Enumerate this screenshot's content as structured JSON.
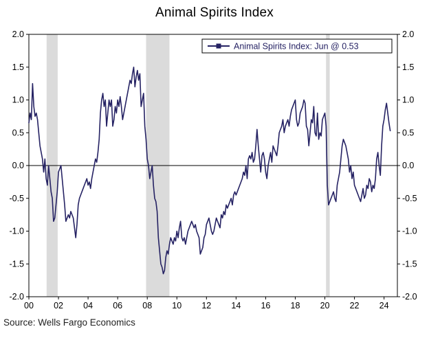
{
  "page": {
    "title": "Animal Spirits Index",
    "source": "Source: Wells Fargo Economics"
  },
  "chart_data": {
    "type": "line",
    "title": "Animal Spirits Index",
    "legend_label": "Animal Spirits Index: Jun @ 0.53",
    "source": "Source: Wells Fargo Economics",
    "x_axis": {
      "range": [
        2000,
        2024.9
      ],
      "tick_years": [
        2000,
        2002,
        2004,
        2006,
        2008,
        2010,
        2012,
        2014,
        2016,
        2018,
        2020,
        2022,
        2024
      ],
      "tick_labels": [
        "00",
        "02",
        "04",
        "06",
        "08",
        "10",
        "12",
        "14",
        "16",
        "18",
        "20",
        "22",
        "24"
      ]
    },
    "y_axis": {
      "range": [
        -2.0,
        2.0
      ],
      "ticks": [
        2.0,
        1.5,
        1.0,
        0.5,
        0.0,
        -0.5,
        -1.0,
        -1.5,
        -2.0
      ],
      "tick_labels": [
        "2.0",
        "1.5",
        "1.0",
        "0.5",
        "0.0",
        "-0.5",
        "-1.0",
        "-1.5",
        "-2.0"
      ]
    },
    "recession_bands": [
      [
        2001.2,
        2001.95
      ],
      [
        2007.92,
        2009.5
      ],
      [
        2020.08,
        2020.33
      ]
    ],
    "colors": {
      "line": "#252263",
      "recession_band": "#DBDBDB",
      "axis": "#000000",
      "legend_border": "#000000"
    },
    "series": [
      {
        "name": "Animal Spirits Index",
        "latest_label": "Jun @ 0.53",
        "frequency": "monthly",
        "x_start_year": 2000,
        "x_step_months": 1,
        "values": [
          0.65,
          0.8,
          0.7,
          1.25,
          0.9,
          0.75,
          0.8,
          0.7,
          0.5,
          0.3,
          0.2,
          0.1,
          -0.1,
          0.1,
          -0.2,
          -0.3,
          0.0,
          -0.2,
          -0.4,
          -0.5,
          -0.85,
          -0.8,
          -0.6,
          -0.4,
          -0.1,
          -0.05,
          0.0,
          -0.2,
          -0.4,
          -0.6,
          -0.85,
          -0.8,
          -0.75,
          -0.8,
          -0.7,
          -0.75,
          -0.8,
          -0.95,
          -1.1,
          -0.9,
          -0.6,
          -0.5,
          -0.45,
          -0.4,
          -0.35,
          -0.3,
          -0.25,
          -0.2,
          -0.3,
          -0.25,
          -0.35,
          -0.2,
          -0.1,
          0.0,
          0.1,
          0.05,
          0.2,
          0.4,
          0.8,
          1.0,
          1.1,
          0.9,
          1.0,
          0.6,
          0.8,
          1.0,
          0.9,
          1.0,
          0.6,
          0.7,
          0.9,
          0.8,
          1.0,
          0.9,
          1.05,
          0.9,
          0.7,
          0.8,
          0.9,
          1.0,
          1.1,
          1.2,
          1.3,
          1.25,
          1.4,
          1.5,
          1.2,
          1.35,
          1.45,
          1.3,
          1.4,
          0.9,
          1.0,
          1.1,
          0.6,
          0.4,
          0.1,
          0.0,
          -0.2,
          -0.1,
          0.0,
          -0.3,
          -0.5,
          -0.55,
          -0.7,
          -1.1,
          -1.3,
          -1.5,
          -1.55,
          -1.65,
          -1.6,
          -1.4,
          -1.3,
          -1.35,
          -1.2,
          -1.1,
          -1.15,
          -1.2,
          -1.1,
          -1.15,
          -1.0,
          -1.1,
          -0.95,
          -0.85,
          -1.1,
          -1.15,
          -1.1,
          -1.2,
          -1.1,
          -1.0,
          -0.95,
          -0.9,
          -0.85,
          -0.9,
          -0.95,
          -0.9,
          -1.0,
          -1.05,
          -1.1,
          -1.35,
          -1.3,
          -1.25,
          -1.1,
          -1.05,
          -0.9,
          -0.85,
          -0.8,
          -0.9,
          -1.0,
          -1.05,
          -1.0,
          -0.9,
          -0.8,
          -0.85,
          -0.9,
          -0.95,
          -0.75,
          -0.8,
          -0.7,
          -0.75,
          -0.6,
          -0.65,
          -0.6,
          -0.55,
          -0.5,
          -0.6,
          -0.45,
          -0.4,
          -0.45,
          -0.4,
          -0.35,
          -0.3,
          -0.25,
          -0.2,
          -0.1,
          -0.15,
          0.0,
          -0.2,
          0.1,
          0.15,
          0.1,
          0.2,
          0.05,
          0.1,
          0.3,
          0.55,
          0.3,
          0.1,
          -0.1,
          0.15,
          0.2,
          0.1,
          -0.1,
          -0.2,
          0.0,
          0.1,
          0.2,
          0.05,
          0.3,
          0.25,
          0.2,
          0.15,
          0.3,
          0.5,
          0.55,
          0.6,
          0.7,
          0.5,
          0.6,
          0.65,
          0.7,
          0.6,
          0.75,
          0.85,
          0.9,
          0.95,
          1.0,
          0.7,
          0.6,
          0.65,
          0.8,
          0.85,
          0.9,
          1.0,
          0.95,
          0.6,
          0.55,
          0.3,
          0.5,
          0.7,
          0.65,
          0.9,
          0.5,
          0.45,
          0.8,
          0.4,
          0.5,
          0.45,
          0.7,
          0.75,
          0.8,
          0.6,
          -0.3,
          -0.6,
          -0.55,
          -0.5,
          -0.45,
          -0.4,
          -0.5,
          -0.55,
          -0.3,
          -0.2,
          -0.1,
          0.1,
          0.3,
          0.4,
          0.35,
          0.3,
          0.2,
          0.1,
          -0.1,
          0.0,
          -0.2,
          -0.1,
          -0.3,
          -0.35,
          -0.4,
          -0.45,
          -0.5,
          -0.55,
          -0.45,
          -0.35,
          -0.5,
          -0.45,
          -0.3,
          -0.35,
          -0.2,
          -0.25,
          -0.4,
          -0.3,
          -0.35,
          -0.2,
          0.1,
          0.2,
          0.0,
          -0.15,
          0.3,
          0.6,
          0.7,
          0.85,
          0.95,
          0.8,
          0.65,
          0.53
        ]
      }
    ]
  }
}
